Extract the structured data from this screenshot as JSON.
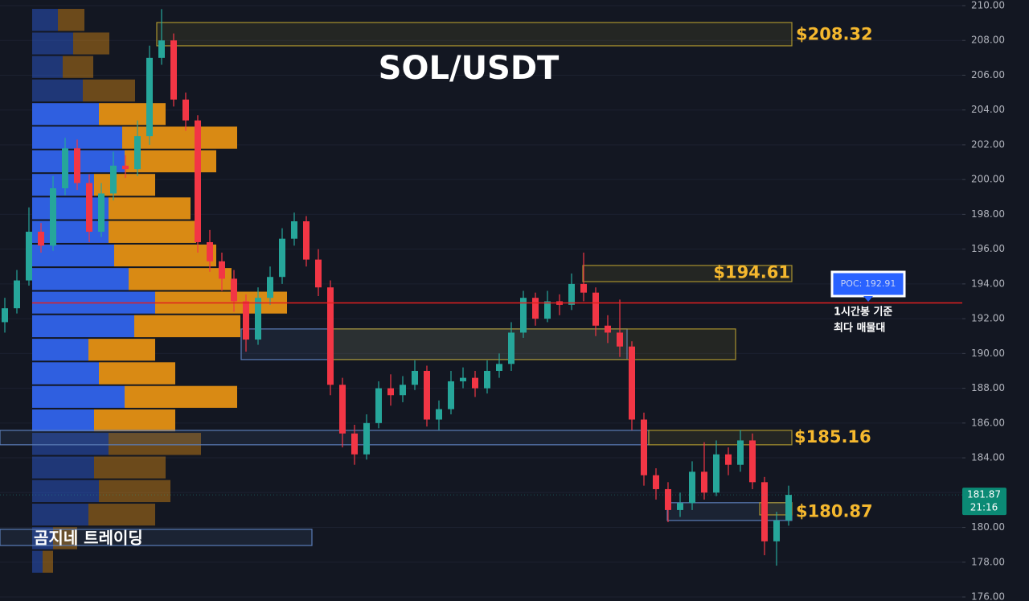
{
  "chart_data": {
    "type": "candlestick",
    "title": "SOL/USDT",
    "open": [
      191.8,
      192.6,
      194.2,
      197.0,
      196.2,
      199.5,
      201.8,
      199.8,
      197.0,
      199.2,
      200.8,
      200.6,
      202.5,
      207.0,
      208.0,
      204.6,
      203.4,
      196.4,
      195.3,
      194.3,
      193.0,
      190.8,
      193.2,
      194.4,
      196.6,
      197.6,
      195.4,
      193.8,
      188.2,
      185.4,
      184.2,
      186.0,
      188.0,
      187.6,
      188.2,
      189.0,
      186.2,
      186.8,
      188.4,
      188.6,
      188.0,
      189.0,
      189.4,
      191.2,
      193.2,
      192.0,
      193.0,
      192.8,
      194.0,
      193.5,
      191.6,
      191.2,
      190.4,
      186.2,
      183.0,
      182.2,
      181.0,
      181.4,
      183.2,
      182.0,
      184.2,
      183.6,
      185.0,
      182.6,
      179.2,
      180.4
    ],
    "high": [
      193.2,
      194.8,
      198.4,
      197.5,
      200.2,
      202.4,
      202.3,
      200.3,
      199.8,
      201.6,
      201.4,
      203.4,
      207.7,
      209.8,
      208.4,
      205.0,
      203.7,
      197.1,
      195.8,
      194.8,
      193.4,
      193.8,
      195.0,
      197.2,
      198.1,
      197.9,
      196.0,
      194.2,
      188.6,
      185.9,
      186.5,
      188.4,
      188.8,
      188.7,
      189.6,
      189.3,
      187.3,
      189.0,
      189.2,
      189.0,
      189.6,
      190.0,
      191.8,
      193.6,
      193.5,
      193.6,
      193.4,
      194.6,
      195.8,
      193.8,
      192.2,
      193.1,
      190.7,
      186.6,
      183.4,
      182.6,
      182.0,
      183.8,
      184.9,
      185.0,
      184.6,
      185.6,
      185.4,
      182.9,
      180.9,
      182.4
    ],
    "low": [
      191.2,
      192.3,
      193.9,
      195.8,
      195.9,
      199.1,
      199.4,
      196.4,
      196.7,
      198.8,
      200.1,
      200.2,
      202.0,
      206.6,
      204.2,
      202.8,
      195.8,
      194.7,
      193.6,
      192.4,
      190.1,
      190.5,
      192.8,
      194.0,
      196.2,
      195.0,
      193.3,
      187.6,
      184.6,
      183.6,
      183.9,
      185.7,
      187.0,
      187.2,
      187.9,
      185.8,
      185.6,
      186.5,
      188.0,
      187.5,
      187.7,
      188.6,
      189.0,
      190.9,
      191.6,
      191.8,
      192.2,
      192.5,
      193.0,
      191.0,
      190.6,
      189.8,
      185.6,
      182.4,
      181.6,
      180.3,
      180.6,
      181.0,
      181.6,
      181.8,
      183.0,
      183.2,
      182.2,
      178.4,
      177.8,
      180.1
    ],
    "close": [
      192.6,
      194.2,
      197.0,
      196.2,
      199.5,
      201.8,
      199.8,
      197.0,
      199.2,
      200.8,
      200.6,
      202.5,
      207.0,
      208.0,
      204.6,
      203.4,
      196.4,
      195.3,
      194.3,
      193.0,
      190.8,
      193.2,
      194.4,
      196.6,
      197.6,
      195.4,
      193.8,
      188.2,
      185.4,
      184.2,
      186.0,
      188.0,
      187.6,
      188.2,
      189.0,
      186.2,
      186.8,
      188.4,
      188.6,
      188.0,
      189.0,
      189.4,
      191.2,
      193.2,
      192.0,
      193.0,
      192.8,
      194.0,
      193.5,
      191.6,
      191.2,
      190.4,
      186.2,
      183.0,
      182.2,
      181.0,
      181.4,
      183.2,
      182.0,
      184.2,
      183.6,
      185.0,
      182.6,
      179.2,
      180.4,
      181.87
    ],
    "up_color": "#26a69a",
    "down_color": "#f23645",
    "ylim": [
      176,
      210
    ],
    "yticks": [
      {
        "value": 176,
        "label": "176.00"
      },
      {
        "value": 178,
        "label": "178.00"
      },
      {
        "value": 180,
        "label": "180.00"
      },
      {
        "value": 182,
        "label": "182.00"
      },
      {
        "value": 184,
        "label": "184.00"
      },
      {
        "value": 186,
        "label": "186.00"
      },
      {
        "value": 188,
        "label": "188.00"
      },
      {
        "value": 190,
        "label": "190.00"
      },
      {
        "value": 192,
        "label": "192.00"
      },
      {
        "value": 194,
        "label": "194.00"
      },
      {
        "value": 196,
        "label": "196.00"
      },
      {
        "value": 198,
        "label": "198.00"
      },
      {
        "value": 200,
        "label": "200.00"
      },
      {
        "value": 202,
        "label": "202.00"
      },
      {
        "value": 204,
        "label": "204.00"
      },
      {
        "value": 206,
        "label": "206.00"
      },
      {
        "value": 208,
        "label": "208.00"
      },
      {
        "value": 210,
        "label": "210.00"
      }
    ],
    "grid": true,
    "levels": [
      {
        "value": 208.32,
        "label": "$208.32"
      },
      {
        "value": 194.61,
        "label": "$194.61"
      },
      {
        "value": 185.16,
        "label": "$185.16"
      },
      {
        "value": 180.87,
        "label": "$180.87"
      }
    ],
    "level_color": "#f5b82e",
    "zones": [
      {
        "low": 207.69,
        "high": 209.03,
        "color": "#a8922e"
      },
      {
        "low": 194.13,
        "high": 195.06,
        "color": "#a8922e"
      },
      {
        "low": 189.65,
        "high": 191.41,
        "color": "#5b7db8"
      },
      {
        "low": 189.65,
        "high": 191.41,
        "color": "#a8922e"
      },
      {
        "low": 184.75,
        "high": 185.58,
        "color": "#5b7db8"
      },
      {
        "low": 184.75,
        "high": 185.58,
        "color": "#a8922e"
      },
      {
        "low": 180.4,
        "high": 181.42,
        "color": "#5b7db8"
      },
      {
        "low": 180.72,
        "high": 181.42,
        "color": "#a8922e"
      },
      {
        "low": 178.96,
        "high": 179.89,
        "color": "#5b7db8"
      }
    ],
    "poc": {
      "value": 192.91,
      "label": "POC: 192.91",
      "color": "#e02020",
      "caption": [
        "1시간봉 기준",
        "최다 매물대"
      ]
    },
    "countdown": "21:16",
    "volume_profile": {
      "bins": [
        209.86,
        208.5,
        207.15,
        205.8,
        204.44,
        203.09,
        201.73,
        200.37,
        199.02,
        197.67,
        196.31,
        194.96,
        193.6,
        192.25,
        190.89,
        189.54,
        188.18,
        186.83,
        185.48,
        184.12,
        182.77,
        181.41,
        180.06,
        178.7,
        177.35
      ],
      "up": [
        32,
        51,
        38,
        63,
        83,
        112,
        115,
        77,
        95,
        95,
        102,
        120,
        153,
        127,
        70,
        83,
        115,
        77,
        95,
        77,
        83,
        70,
        26,
        13
      ],
      "down": [
        33,
        45,
        38,
        65,
        83,
        143,
        114,
        76,
        102,
        109,
        127,
        128,
        164,
        132,
        83,
        95,
        140,
        101,
        115,
        89,
        89,
        83,
        30,
        13
      ],
      "up_color": "#2f5fe0",
      "down_color": "#d98a14",
      "value_area": [
        185.48,
        204.44
      ]
    },
    "watermark": "곰지네 트레이딩"
  }
}
